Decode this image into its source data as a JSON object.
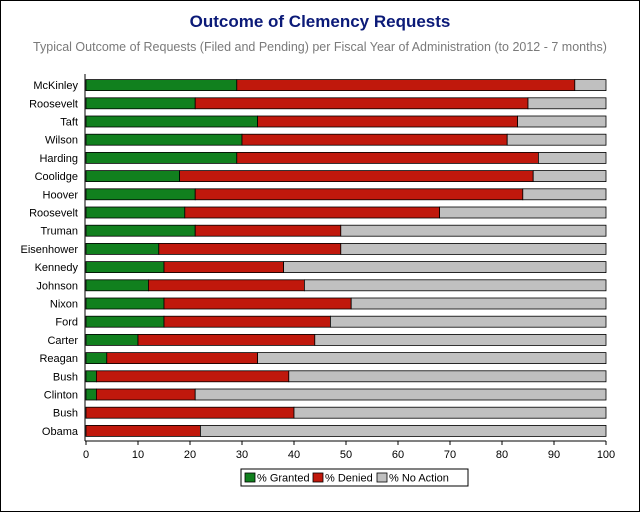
{
  "chart_data": {
    "type": "bar",
    "orientation": "horizontal",
    "stacked": true,
    "title": "Outcome of Clemency Requests",
    "subtitle": "Typical Outcome of Requests (Filed and Pending) per Fiscal Year of Administration (to 2012 - 7 months)",
    "categories": [
      "McKinley",
      "Roosevelt",
      "Taft",
      "Wilson",
      "Harding",
      "Coolidge",
      "Hoover",
      "Roosevelt",
      "Truman",
      "Eisenhower",
      "Kennedy",
      "Johnson",
      "Nixon",
      "Ford",
      "Carter",
      "Reagan",
      "Bush",
      "Clinton",
      "Bush",
      "Obama"
    ],
    "series": [
      {
        "name": "% Granted",
        "color": "#11801e",
        "values": [
          29,
          21,
          33,
          30,
          29,
          18,
          21,
          19,
          21,
          14,
          15,
          12,
          15,
          15,
          10,
          4,
          2,
          2,
          0,
          0
        ]
      },
      {
        "name": "% Denied",
        "color": "#c0180c",
        "values": [
          65,
          64,
          50,
          51,
          58,
          68,
          63,
          49,
          28,
          35,
          23,
          30,
          36,
          32,
          34,
          29,
          37,
          19,
          40,
          22
        ]
      },
      {
        "name": "% No Action",
        "color": "#c0c0c0",
        "values": [
          6,
          15,
          17,
          19,
          13,
          14,
          16,
          32,
          51,
          51,
          62,
          58,
          49,
          53,
          56,
          67,
          61,
          79,
          60,
          78
        ]
      }
    ],
    "xlim": [
      0,
      100
    ],
    "xticks": [
      "0",
      "10",
      "20",
      "30",
      "40",
      "50",
      "60",
      "70",
      "80",
      "90",
      "100"
    ],
    "legend_position": "bottom"
  }
}
